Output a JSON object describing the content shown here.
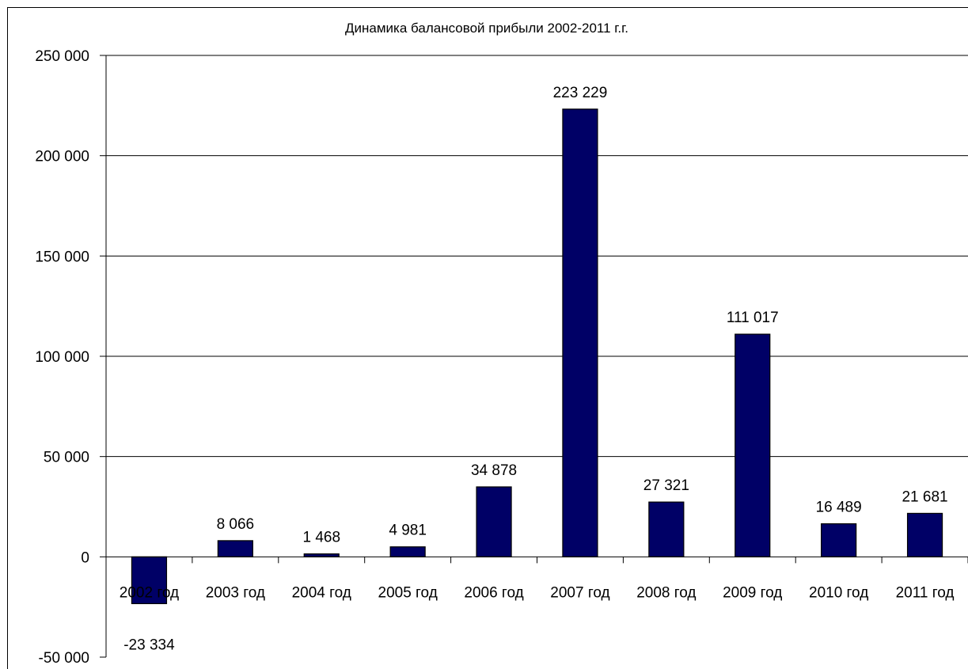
{
  "chart_data": {
    "type": "bar",
    "title": "Динамика балансовой прибыли 2002-2011 г.г.",
    "xlabel": "",
    "ylabel": "",
    "categories": [
      "2002 год",
      "2003 год",
      "2004 год",
      "2005 год",
      "2006 год",
      "2007 год",
      "2008 год",
      "2009 год",
      "2010 год",
      "2011 год"
    ],
    "values": [
      -23334,
      8066,
      1468,
      4981,
      34878,
      223229,
      27321,
      111017,
      16489,
      21681
    ],
    "value_labels": [
      "-23 334",
      "8 066",
      "1 468",
      "4 981",
      "34 878",
      "223 229",
      "27 321",
      "111 017",
      "16 489",
      "21 681"
    ],
    "ylim": [
      -50000,
      250000
    ],
    "yticks": [
      -50000,
      0,
      50000,
      100000,
      150000,
      200000,
      250000
    ],
    "ytick_labels": [
      "-50 000",
      "0",
      "50 000",
      "100 000",
      "150 000",
      "200 000",
      "250 000"
    ],
    "grid": true,
    "legend": "none",
    "colors": {
      "bar": "#000066"
    }
  }
}
